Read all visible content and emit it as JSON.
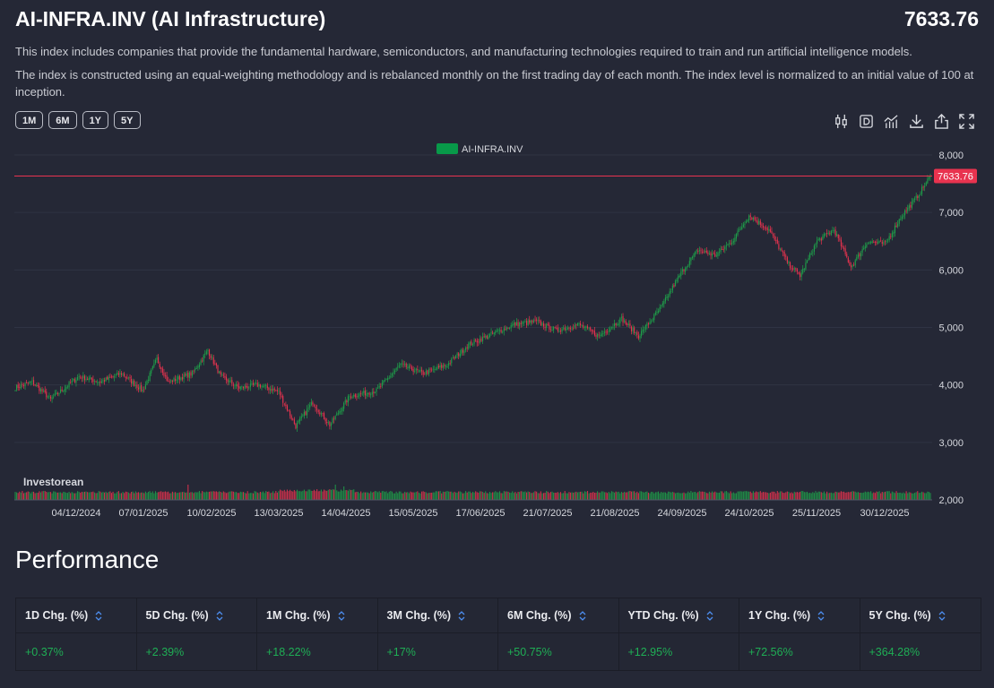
{
  "header": {
    "title": "AI-INFRA.INV (AI Infrastructure)",
    "price": "7633.76",
    "description_1": "This index includes companies that provide the fundamental hardware, semiconductors, and manufacturing technologies required to train and run artificial intelligence models.",
    "description_2": "The index is constructed using an equal-weighting methodology and is rebalanced monthly on the first trading day of each month. The index level is normalized to an initial value of 100 at inception."
  },
  "range_buttons": [
    "1M",
    "6M",
    "1Y",
    "5Y"
  ],
  "toolbar_icons": [
    "candle-type-icon",
    "d-badge-icon",
    "indicators-icon",
    "download-icon",
    "share-icon",
    "fullscreen-icon"
  ],
  "chart_data": {
    "type": "candlestick",
    "legend": "AI-INFRA.INV",
    "legend_color": "#089949",
    "watermark": "Investorean",
    "last_price_label": "7633.76",
    "last_price": 7633.76,
    "up_color": "#1ea14a",
    "down_color": "#e8334f",
    "y_ticks": [
      "8,000",
      "7,000",
      "6,000",
      "5,000",
      "4,000",
      "3,000",
      "2,000"
    ],
    "y_values": [
      8000,
      7000,
      6000,
      5000,
      4000,
      3000,
      2000
    ],
    "ylim": [
      2000,
      8100
    ],
    "x_ticks": [
      "04/12/2024",
      "07/01/2025",
      "10/02/2025",
      "13/03/2025",
      "14/04/2025",
      "15/05/2025",
      "17/06/2025",
      "21/07/2025",
      "21/08/2025",
      "24/09/2025",
      "24/10/2025",
      "25/11/2025",
      "30/12/2025"
    ],
    "anchor_closes": [
      [
        0,
        3950
      ],
      [
        12,
        4050
      ],
      [
        25,
        3750
      ],
      [
        45,
        4150
      ],
      [
        60,
        4050
      ],
      [
        75,
        4200
      ],
      [
        90,
        3900
      ],
      [
        100,
        4450
      ],
      [
        108,
        4050
      ],
      [
        125,
        4200
      ],
      [
        136,
        4600
      ],
      [
        145,
        4150
      ],
      [
        158,
        3950
      ],
      [
        172,
        4000
      ],
      [
        186,
        3880
      ],
      [
        198,
        3280
      ],
      [
        210,
        3700
      ],
      [
        222,
        3300
      ],
      [
        236,
        3800
      ],
      [
        255,
        3900
      ],
      [
        272,
        4350
      ],
      [
        288,
        4200
      ],
      [
        305,
        4350
      ],
      [
        320,
        4700
      ],
      [
        338,
        4900
      ],
      [
        352,
        5050
      ],
      [
        368,
        5100
      ],
      [
        382,
        4950
      ],
      [
        398,
        5050
      ],
      [
        412,
        4850
      ],
      [
        428,
        5150
      ],
      [
        440,
        4850
      ],
      [
        456,
        5350
      ],
      [
        470,
        5950
      ],
      [
        482,
        6350
      ],
      [
        494,
        6250
      ],
      [
        506,
        6500
      ],
      [
        518,
        6950
      ],
      [
        532,
        6700
      ],
      [
        546,
        6100
      ],
      [
        554,
        5900
      ],
      [
        566,
        6500
      ],
      [
        578,
        6700
      ],
      [
        590,
        6050
      ],
      [
        602,
        6500
      ],
      [
        614,
        6450
      ],
      [
        626,
        6950
      ],
      [
        636,
        7250
      ],
      [
        646,
        7633.76
      ]
    ],
    "volume_note": "relative volume bars along bottom",
    "volume_spikes": [
      [
        122,
        2.6
      ],
      [
        226,
        2.4
      ],
      [
        232,
        2.0
      ]
    ]
  },
  "performance": {
    "title": "Performance",
    "columns": [
      {
        "label": "1D Chg. (%)",
        "value": "+0.37%"
      },
      {
        "label": "5D Chg. (%)",
        "value": "+2.39%"
      },
      {
        "label": "1M Chg. (%)",
        "value": "+18.22%"
      },
      {
        "label": "3M Chg. (%)",
        "value": "+17%"
      },
      {
        "label": "6M Chg. (%)",
        "value": "+50.75%"
      },
      {
        "label": "YTD Chg. (%)",
        "value": "+12.95%"
      },
      {
        "label": "1Y Chg. (%)",
        "value": "+72.56%"
      },
      {
        "label": "5Y Chg. (%)",
        "value": "+364.28%"
      }
    ]
  }
}
